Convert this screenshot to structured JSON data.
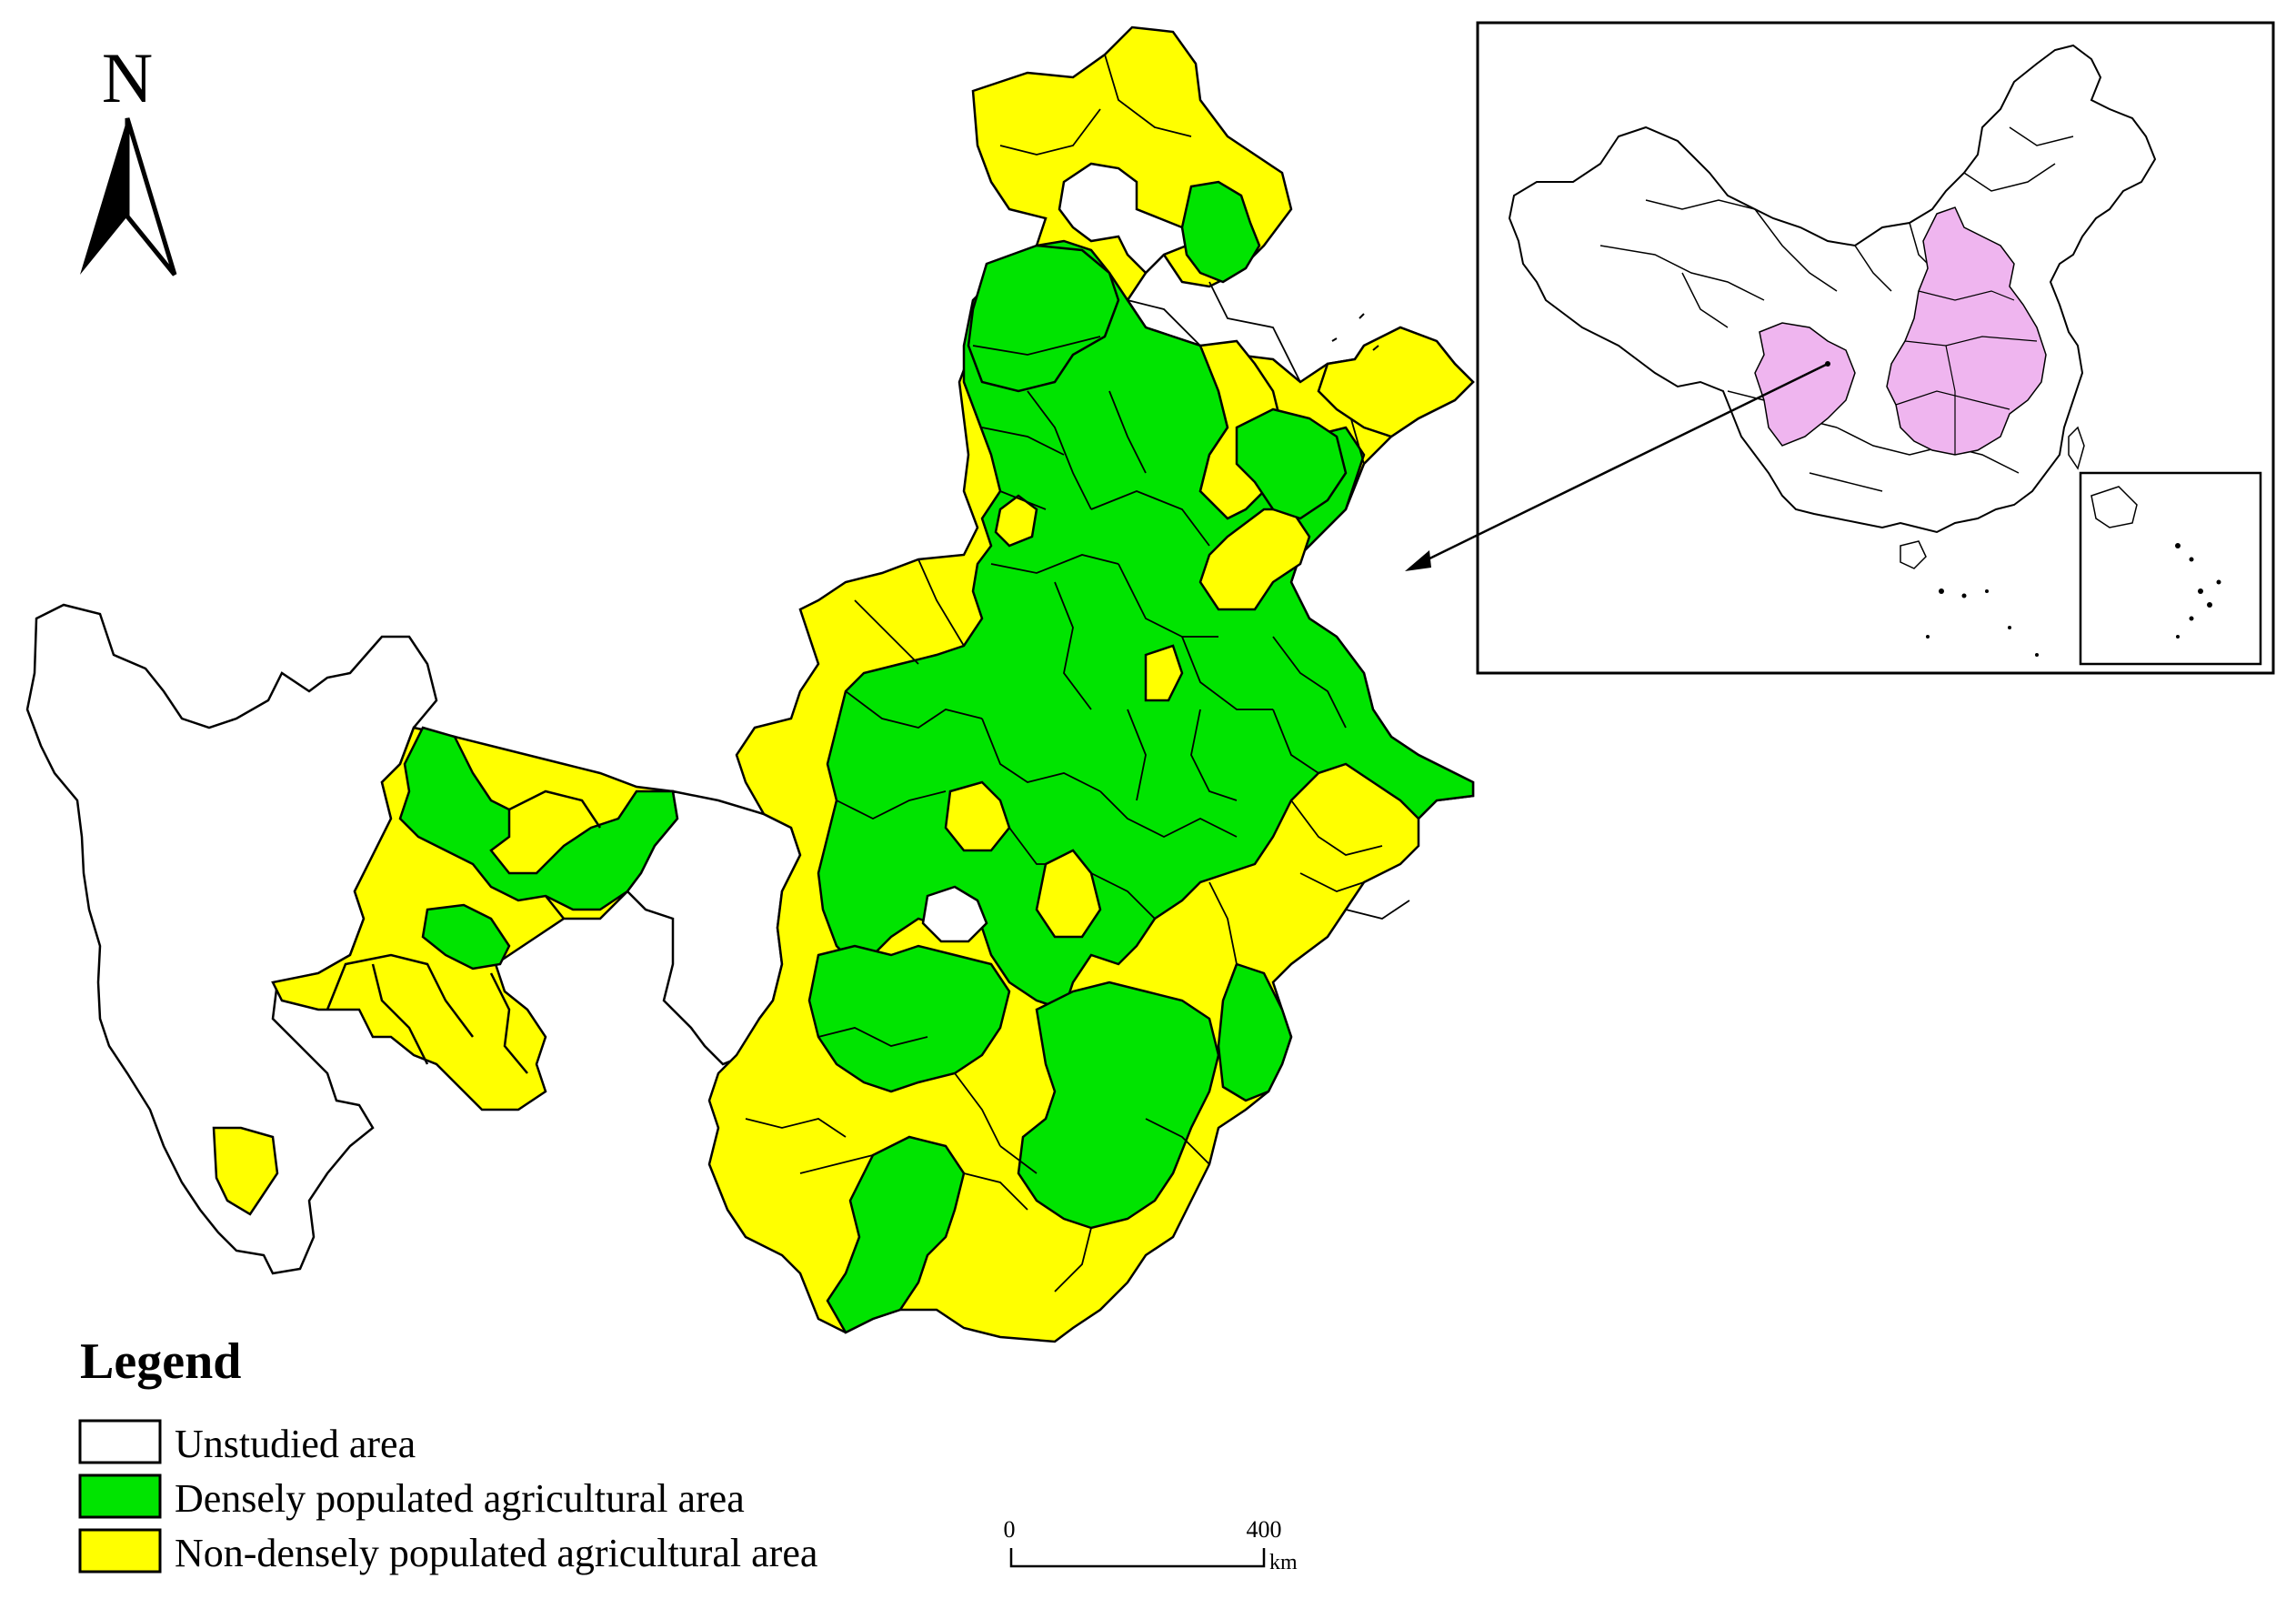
{
  "north_arrow": {
    "label": "N"
  },
  "legend": {
    "title": "Legend",
    "items": [
      {
        "label": "Unstudied area",
        "color": "#ffffff"
      },
      {
        "label": "Densely populated agricultural area",
        "color": "#00e400"
      },
      {
        "label": "Non-densely populated agricultural area",
        "color": "#ffff00"
      }
    ]
  },
  "scale_bar": {
    "start": "0",
    "end": "400",
    "unit": "km"
  },
  "colors": {
    "dense": "#00e400",
    "non_dense": "#ffff00",
    "unstudied": "#ffffff",
    "inset_highlight": "#efb5ef",
    "border": "#000000"
  },
  "inset": {
    "description_icon": "china-locator-map-icon"
  }
}
